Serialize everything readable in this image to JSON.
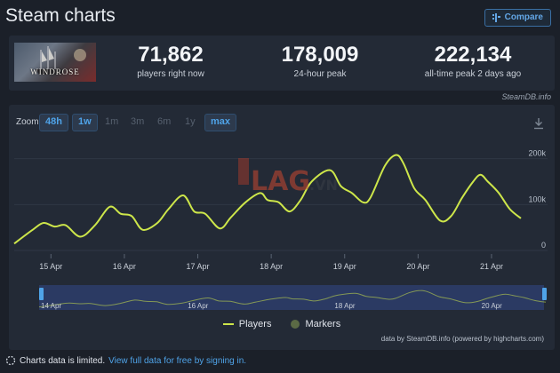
{
  "header": {
    "title": "Steam charts",
    "compare_label": "Compare"
  },
  "game": {
    "logo_text": "WINDROSE"
  },
  "stats": [
    {
      "value": "71,862",
      "label": "players right now"
    },
    {
      "value": "178,009",
      "label": "24-hour peak"
    },
    {
      "value": "222,134",
      "label": "all-time peak 2 days ago"
    }
  ],
  "credit": "SteamDB.info",
  "zoom": {
    "label": "Zoom",
    "options": [
      "48h",
      "1w",
      "1m",
      "3m",
      "6m",
      "1y",
      "max"
    ],
    "active": "1w"
  },
  "legend": {
    "players": "Players",
    "markers": "Markers"
  },
  "chart_credit": "data by SteamDB.info (powered by highcharts.com)",
  "navigator": {
    "labels": [
      "14 Apr",
      "16 Apr",
      "18 Apr",
      "20 Apr"
    ]
  },
  "footer": {
    "text": "Charts data is limited.",
    "link": "View full data for free by signing in."
  },
  "watermark": {
    "text": "LAG.VN"
  },
  "colors": {
    "line": "#cde64a",
    "accent": "#4fa3e8",
    "background": "#1b2029",
    "panel": "#232a36"
  },
  "chart_data": {
    "type": "line",
    "title": "",
    "xlabel": "",
    "ylabel": "",
    "categories": [
      "15 Apr",
      "16 Apr",
      "17 Apr",
      "18 Apr",
      "19 Apr",
      "20 Apr",
      "21 Apr"
    ],
    "y_ticks": [
      "0",
      "100k",
      "200k"
    ],
    "ylim": [
      0,
      240000
    ],
    "x_range": [
      14.5,
      21.4
    ],
    "series": [
      {
        "name": "Players",
        "x": [
          14.5,
          14.75,
          14.9,
          15.05,
          15.2,
          15.4,
          15.6,
          15.8,
          15.95,
          16.1,
          16.25,
          16.45,
          16.6,
          16.8,
          16.95,
          17.1,
          17.3,
          17.45,
          17.65,
          17.85,
          17.95,
          18.1,
          18.25,
          18.4,
          18.55,
          18.8,
          18.95,
          19.1,
          19.25,
          19.35,
          19.55,
          19.7,
          19.8,
          19.95,
          20.1,
          20.3,
          20.45,
          20.6,
          20.75,
          20.85,
          20.95,
          21.1,
          21.25,
          21.4
        ],
        "y": [
          15000,
          45000,
          60000,
          52000,
          55000,
          30000,
          55000,
          95000,
          80000,
          75000,
          45000,
          60000,
          90000,
          120000,
          85000,
          80000,
          48000,
          72000,
          105000,
          125000,
          110000,
          105000,
          85000,
          110000,
          150000,
          175000,
          140000,
          125000,
          105000,
          115000,
          185000,
          208000,
          190000,
          135000,
          110000,
          65000,
          75000,
          115000,
          150000,
          165000,
          150000,
          125000,
          90000,
          70000
        ]
      }
    ],
    "grid": true,
    "legend_position": "bottom-center"
  }
}
